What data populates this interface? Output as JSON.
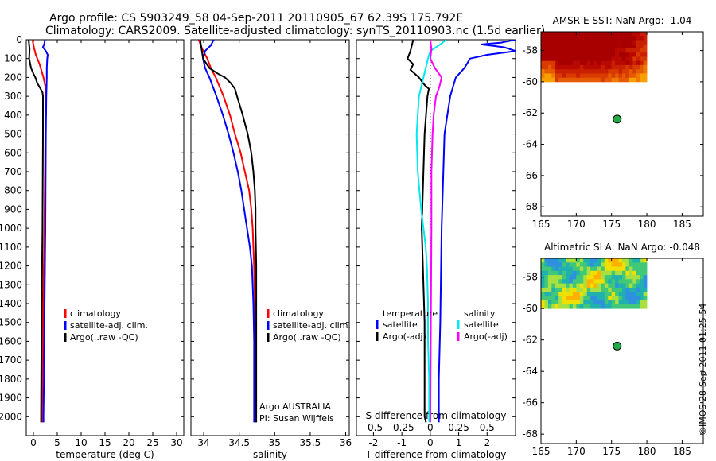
{
  "title": {
    "line1": "Argo profile: CS 5903249_58 04-Sep-2011 20110905_67 62.39S 175.792E",
    "line2": "Climatology: CARS2009. Satellite-adjusted climatology: synTS_20110903.nc (1.5d earlier)"
  },
  "depth_ticks": [
    "0",
    "100",
    "200",
    "300",
    "400",
    "500",
    "600",
    "700",
    "800",
    "900",
    "1000",
    "1100",
    "1200",
    "1300",
    "1400",
    "1500",
    "1600",
    "1700",
    "1800",
    "1900",
    "2000"
  ],
  "colors": {
    "climatology": "#ff0000",
    "satellite": "#0000ff",
    "argo": "#000000",
    "sat_salinity": "#00e8f0",
    "argo_salinity": "#ff00ff",
    "marker": "#22aa44"
  },
  "watermark": "©IMOS 28-Sep-2011 01:25:54",
  "chart_data": [
    {
      "type": "line",
      "xlabel": "temperature (deg C)",
      "ylabel": "",
      "xlim": [
        -1.5,
        31.5
      ],
      "ylim": [
        2100,
        0
      ],
      "x_ticks": [
        "0",
        "5",
        "10",
        "15",
        "20",
        "25",
        "30"
      ],
      "legend": [
        "climatology",
        "satellite-adj. clim.",
        "Argo(..raw -QC)"
      ],
      "series": [
        {
          "name": "climatology",
          "depth": [
            0,
            40,
            80,
            130,
            200,
            260,
            300,
            500,
            1000,
            1500,
            2000,
            2030
          ],
          "values": [
            -0.2,
            0.1,
            0.5,
            1.3,
            2.1,
            2.6,
            2.6,
            2.5,
            2.3,
            2.0,
            1.8,
            1.8
          ]
        },
        {
          "name": "satellite-adj. clim.",
          "depth": [
            0,
            20,
            40,
            60,
            80,
            100,
            150,
            200,
            300,
            500,
            1000,
            1500,
            1800,
            2000,
            2030
          ],
          "values": [
            2.4,
            2.3,
            2.0,
            2.6,
            3.0,
            2.9,
            2.8,
            2.8,
            2.7,
            2.6,
            2.5,
            2.3,
            2.2,
            2.1,
            2.1
          ]
        },
        {
          "name": "Argo(..raw -QC)",
          "depth": [
            0,
            50,
            100,
            150,
            180,
            200,
            230,
            260,
            280,
            300,
            500,
            1000,
            1500,
            2000,
            2030
          ],
          "values": [
            -1.0,
            -0.8,
            -0.9,
            -0.5,
            0.0,
            0.4,
            0.8,
            1.5,
            1.9,
            2.0,
            2.0,
            1.9,
            1.7,
            1.6,
            1.6
          ]
        }
      ]
    },
    {
      "type": "line",
      "xlabel": "salinity",
      "xlim": [
        33.82,
        36.05
      ],
      "ylim": [
        2100,
        0
      ],
      "x_ticks": [
        "34",
        "34.5",
        "35",
        "35.5",
        "36"
      ],
      "legend": [
        "climatology",
        "satellite-adj. clim.",
        "Argo(..raw -QC)"
      ],
      "annotation": [
        "Argo AUSTRALIA",
        "PI: Susan Wijffels"
      ],
      "series": [
        {
          "name": "climatology",
          "depth": [
            0,
            50,
            100,
            150,
            200,
            300,
            400,
            500,
            600,
            700,
            800,
            900,
            1000,
            1100,
            1200,
            1400,
            1600,
            1800,
            2000,
            2030
          ],
          "values": [
            33.93,
            33.98,
            34.05,
            34.1,
            34.17,
            34.28,
            34.37,
            34.44,
            34.52,
            34.58,
            34.64,
            34.67,
            34.69,
            34.7,
            34.71,
            34.72,
            34.72,
            34.72,
            34.72,
            34.72
          ]
        },
        {
          "name": "satellite-adj. clim.",
          "depth": [
            0,
            30,
            60,
            100,
            150,
            200,
            300,
            400,
            500,
            600,
            700,
            800,
            900,
            1000,
            1100,
            1200,
            1400,
            1600,
            1800,
            2000,
            2030
          ],
          "values": [
            34.14,
            34.1,
            34.02,
            33.99,
            34.02,
            34.08,
            34.18,
            34.27,
            34.35,
            34.42,
            34.48,
            34.53,
            34.57,
            34.61,
            34.65,
            34.68,
            34.7,
            34.71,
            34.71,
            34.71,
            34.71
          ]
        },
        {
          "name": "Argo(..raw -QC)",
          "depth": [
            0,
            50,
            100,
            150,
            180,
            200,
            230,
            260,
            300,
            400,
            500,
            600,
            700,
            800,
            900,
            1000,
            1200,
            1400,
            1600,
            1800,
            2000,
            2030
          ],
          "values": [
            33.95,
            33.97,
            33.99,
            34.08,
            34.2,
            34.3,
            34.38,
            34.44,
            34.47,
            34.55,
            34.62,
            34.67,
            34.7,
            34.72,
            34.73,
            34.73,
            34.74,
            34.74,
            34.74,
            34.74,
            34.74,
            34.74
          ]
        }
      ]
    },
    {
      "type": "line",
      "xlabel": "T difference from climatology",
      "xlabel_top": "S difference from climatology",
      "xlim": [
        -2.6,
        3.0
      ],
      "ylim": [
        2100,
        0
      ],
      "x_ticks": [
        "-2",
        "-1",
        "0",
        "1",
        "2"
      ],
      "s_ticks": [
        "-0.5",
        "-0.25",
        "0",
        "0.25",
        "0.5"
      ],
      "s_scale": 4,
      "legend_headers": [
        "temperature",
        "salinity"
      ],
      "legend": [
        "satellite",
        "Argo(-adj)",
        "satellite",
        "Argo(-adj)"
      ],
      "series": [
        {
          "name": "satellite",
          "quantity": "temperature",
          "depth": [
            0,
            15,
            25,
            40,
            60,
            80,
            100,
            150,
            200,
            300,
            500,
            1000,
            1500,
            1800,
            2000,
            2030
          ],
          "values": [
            3.0,
            2.5,
            1.8,
            2.6,
            3.0,
            2.0,
            1.4,
            1.2,
            0.9,
            0.7,
            0.5,
            0.4,
            0.35,
            0.3,
            0.3,
            0.3
          ]
        },
        {
          "name": "Argo(-adj)",
          "quantity": "temperature",
          "depth": [
            0,
            60,
            100,
            130,
            160,
            200,
            220,
            240,
            260,
            300,
            500,
            1000,
            1500,
            2000,
            2030
          ],
          "values": [
            -0.6,
            -0.7,
            -0.8,
            -0.6,
            -0.7,
            -0.4,
            -0.3,
            -0.2,
            -0.05,
            -0.1,
            -0.2,
            -0.3,
            -0.2,
            -0.2,
            -0.15
          ]
        },
        {
          "name": "satellite",
          "quantity": "salinity",
          "depth": [
            0,
            20,
            60,
            100,
            200,
            300,
            400,
            500,
            700,
            900,
            1000,
            1100,
            1200,
            1400,
            1600,
            1800,
            2000,
            2030
          ],
          "values": [
            0.14,
            0.1,
            0.0,
            -0.02,
            -0.06,
            -0.1,
            -0.11,
            -0.12,
            -0.11,
            -0.08,
            -0.06,
            -0.04,
            -0.03,
            -0.02,
            -0.02,
            -0.01,
            -0.01,
            -0.01
          ]
        },
        {
          "name": "Argo(-adj)",
          "quantity": "salinity",
          "depth": [
            0,
            50,
            100,
            150,
            200,
            250,
            300,
            400,
            500,
            700,
            1000,
            1500,
            2000,
            2030
          ],
          "values": [
            0.0,
            0.01,
            0.0,
            0.04,
            0.1,
            0.08,
            0.05,
            0.03,
            0.02,
            0.01,
            0.01,
            0.005,
            0.0,
            0.0
          ]
        }
      ]
    },
    {
      "type": "heatmap",
      "title": "AMSR-E SST: NaN Argo: -1.04",
      "xlim": [
        165,
        188
      ],
      "ylim": [
        -68.6,
        -56.8
      ],
      "x_ticks": [
        "165",
        "170",
        "175",
        "180",
        "185"
      ],
      "y_ticks": [
        "-58",
        "-60",
        "-62",
        "-64",
        "-66",
        "-68"
      ],
      "region": {
        "lon": [
          165,
          180
        ],
        "lat": [
          -60,
          -56.8
        ]
      },
      "float_position": {
        "lon": 175.792,
        "lat": -62.39
      }
    },
    {
      "type": "heatmap",
      "title": "Altimetric SLA: NaN Argo: -0.048",
      "xlim": [
        165,
        188
      ],
      "ylim": [
        -68.6,
        -56.8
      ],
      "x_ticks": [
        "165",
        "170",
        "175",
        "180",
        "185"
      ],
      "y_ticks": [
        "-58",
        "-60",
        "-62",
        "-64",
        "-66",
        "-68"
      ],
      "region": {
        "lon": [
          165,
          180
        ],
        "lat": [
          -60,
          -56.8
        ]
      },
      "float_position": {
        "lon": 175.792,
        "lat": -62.39
      }
    }
  ]
}
